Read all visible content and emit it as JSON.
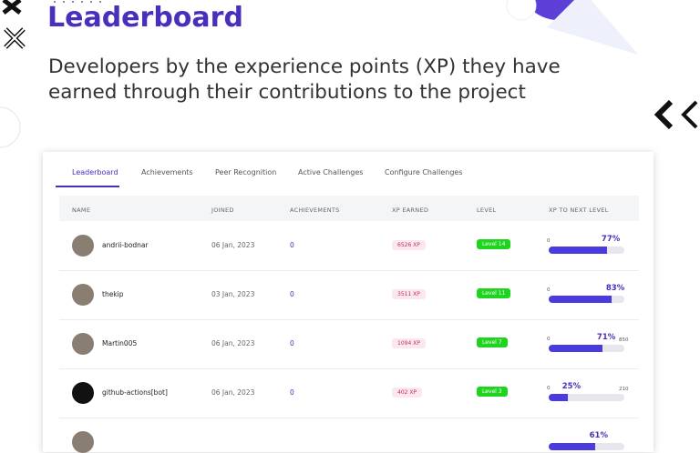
{
  "header": {
    "title": "Leaderboard",
    "subtitle_lines": [
      "Developers by the experience points (XP) they have",
      "earned through their contributions to the project"
    ]
  },
  "tabs": [
    "Leaderboard",
    "Achievements",
    "Peer Recognition",
    "Active Challenges",
    "Configure Challenges"
  ],
  "table": {
    "columns": [
      "NAME",
      "JOINED",
      "ACHIEVEMENTS",
      "XP EARNED",
      "LEVEL",
      "XP TO NEXT LEVEL"
    ],
    "rows": [
      {
        "name": "andrii-bodnar",
        "joined": "06 Jan, 2023",
        "achievements": 0,
        "xp": "6526 XP",
        "level": "Level 14",
        "progress_min": 0,
        "progress": 77,
        "progress_label": "77%"
      },
      {
        "name": "thekip",
        "joined": "03 Jan, 2023",
        "achievements": 0,
        "xp": "3511 XP",
        "level": "Level 11",
        "progress_min": 0,
        "progress": 83,
        "progress_label": "83%"
      },
      {
        "name": "Martin005",
        "joined": "06 Jan, 2023",
        "achievements": 0,
        "xp": "1094 XP",
        "level": "Level 7",
        "progress_min": 0,
        "progress": 71,
        "progress_label": "71%",
        "progress_max": 850
      },
      {
        "name": "github-actions[bot]",
        "joined": "06 Jan, 2023",
        "achievements": 0,
        "xp": "402 XP",
        "level": "Level 3",
        "progress_min": 0,
        "progress": 25,
        "progress_label": "25%",
        "progress_max": 210
      },
      {
        "progress": 61,
        "progress_label": "61%"
      }
    ]
  }
}
